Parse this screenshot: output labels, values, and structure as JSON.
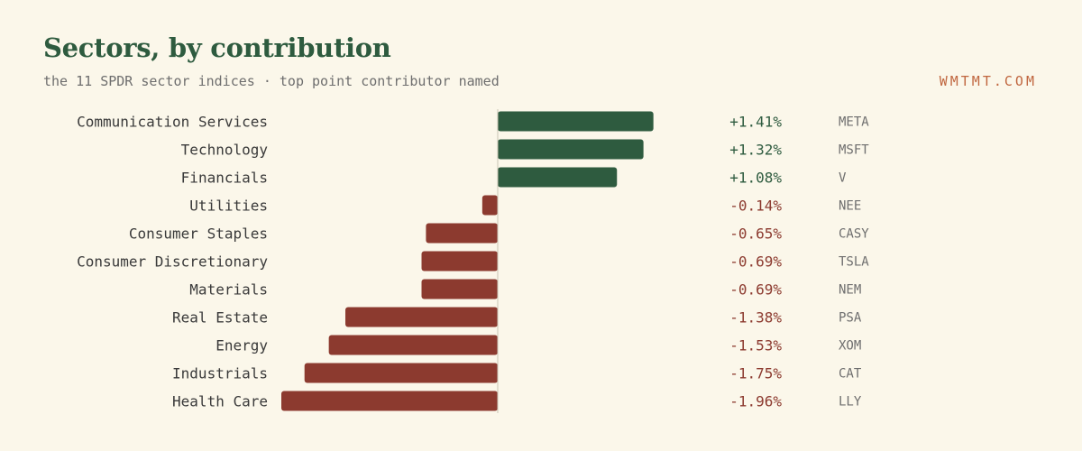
{
  "header": {
    "title": "Sectors, by contribution",
    "subtitle": "the 11 SPDR sector indices · top point contributor named",
    "brand": "WMTMT.COM"
  },
  "colors": {
    "positive": "#2e5b3f",
    "negative": "#8c3a2f",
    "zero_line": "#c9c4b4"
  },
  "chart_data": {
    "type": "bar",
    "orientation": "horizontal",
    "title": "Sectors, by contribution",
    "subtitle": "the 11 SPDR sector indices · top point contributor named",
    "xlim": [
      -1.96,
      1.41
    ],
    "grid": false,
    "categories": [
      "Communication Services",
      "Technology",
      "Financials",
      "Utilities",
      "Consumer Staples",
      "Consumer Discretionary",
      "Materials",
      "Real Estate",
      "Energy",
      "Industrials",
      "Health Care"
    ],
    "values": [
      1.41,
      1.32,
      1.08,
      -0.14,
      -0.65,
      -0.69,
      -0.69,
      -1.38,
      -1.53,
      -1.75,
      -1.96
    ],
    "value_labels": [
      "+1.41%",
      "+1.32%",
      "+1.08%",
      "-0.14%",
      "-0.65%",
      "-0.69%",
      "-0.69%",
      "-1.38%",
      "-1.53%",
      "-1.75%",
      "-1.96%"
    ],
    "top_contributors": [
      "META",
      "MSFT",
      "V",
      "NEE",
      "CASY",
      "TSLA",
      "NEM",
      "PSA",
      "XOM",
      "CAT",
      "LLY"
    ]
  }
}
